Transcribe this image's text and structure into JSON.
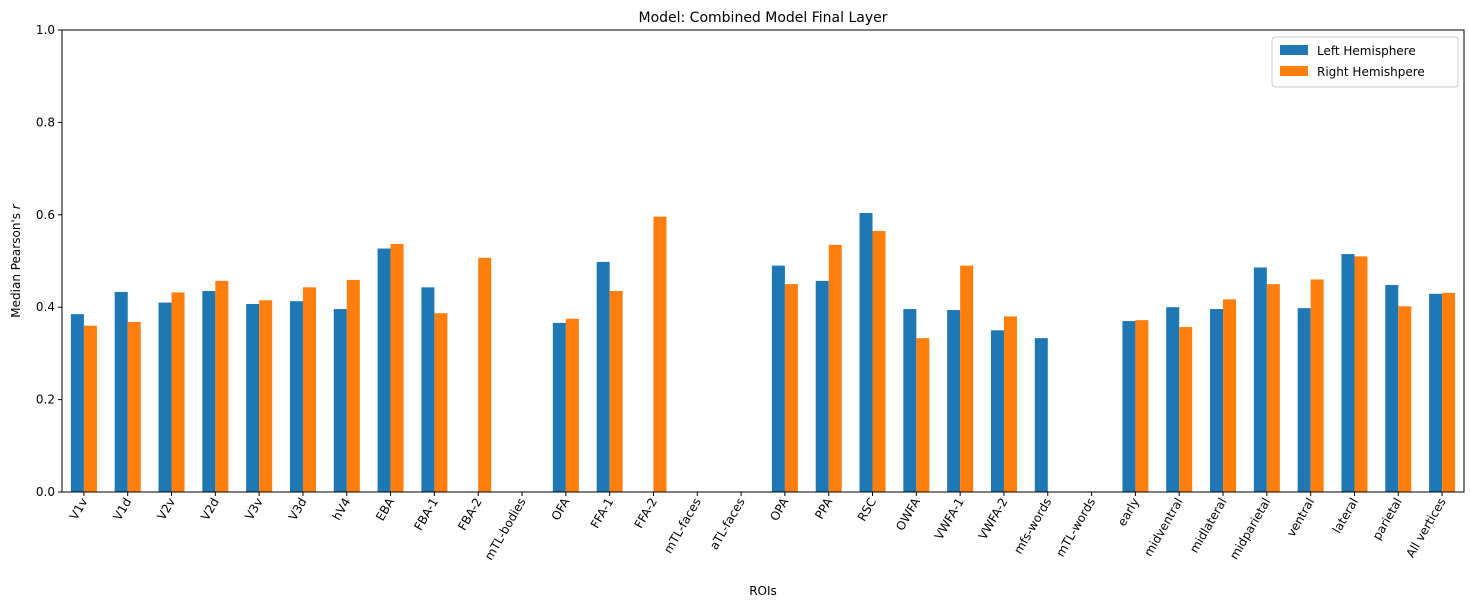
{
  "chart_data": {
    "type": "bar",
    "title": "Model: Combined Model Final Layer",
    "xlabel": "ROIs",
    "ylabel": "Median Pearson's r",
    "ylim": [
      0,
      1.0
    ],
    "yticks": [
      "0.0",
      "0.2",
      "0.4",
      "0.6",
      "0.8",
      "1.0"
    ],
    "legend_position": "top-right",
    "grid": false,
    "categories": [
      "V1v",
      "V1d",
      "V2v",
      "V2d",
      "V3v",
      "V3d",
      "hV4",
      "EBA",
      "FBA-1",
      "FBA-2",
      "mTL-bodies",
      "OFA",
      "FFA-1",
      "FFA-2",
      "mTL-faces",
      "aTL-faces",
      "OPA",
      "PPA",
      "RSC",
      "OWFA",
      "VWFA-1",
      "VWFA-2",
      "mfs-words",
      "mTL-words",
      "early",
      "midventral",
      "midlateral",
      "midparietal",
      "ventral",
      "lateral",
      "parietal",
      "All vertices"
    ],
    "series": [
      {
        "name": "Left Hemisphere",
        "color": "#1f77b4",
        "values": [
          0.385,
          0.433,
          0.41,
          0.435,
          0.407,
          0.413,
          0.396,
          0.527,
          0.443,
          0,
          0,
          0.366,
          0.498,
          0,
          0,
          0,
          0.49,
          0.457,
          0.604,
          0.396,
          0.394,
          0.35,
          0.333,
          0,
          0.37,
          0.4,
          0.396,
          0.486,
          0.398,
          0.515,
          0.448,
          0.429
        ]
      },
      {
        "name": "Right Hemishpere",
        "color": "#ff7f0e",
        "values": [
          0.36,
          0.368,
          0.432,
          0.457,
          0.415,
          0.443,
          0.459,
          0.537,
          0.387,
          0.507,
          0,
          0.375,
          0.435,
          0.596,
          0,
          0,
          0.45,
          0.535,
          0.565,
          0.333,
          0.49,
          0.38,
          0,
          0,
          0.372,
          0.357,
          0.417,
          0.45,
          0.46,
          0.51,
          0.402,
          0.431
        ]
      }
    ]
  }
}
